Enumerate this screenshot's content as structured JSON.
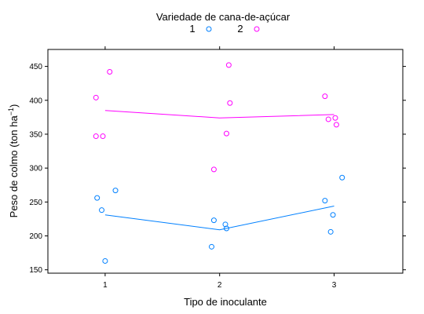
{
  "chart_data": {
    "type": "scatter",
    "legend": {
      "title": "Variedade de cana-de-açúcar",
      "placement": "top",
      "entries": [
        {
          "label": "1",
          "color": "#0080ff"
        },
        {
          "label": "2",
          "color": "#ff00ff"
        }
      ]
    },
    "xlabel": "Tipo de inoculante",
    "ylabel": {
      "main": "Peso de colmo (ton ha",
      "sup": "−1",
      "close": ")"
    },
    "xlim": [
      0.5,
      3.6
    ],
    "ylim": [
      145,
      475
    ],
    "x_ticks": [
      1,
      2,
      3
    ],
    "y_ticks": [
      150,
      200,
      250,
      300,
      350,
      400,
      450
    ],
    "grid": false,
    "series": [
      {
        "name": "1",
        "color": "#0080ff",
        "points": [
          {
            "x": 0.93,
            "y": 256
          },
          {
            "x": 0.97,
            "y": 238
          },
          {
            "x": 1.0,
            "y": 163
          },
          {
            "x": 1.09,
            "y": 267
          },
          {
            "x": 1.93,
            "y": 184
          },
          {
            "x": 1.95,
            "y": 223
          },
          {
            "x": 2.05,
            "y": 217
          },
          {
            "x": 2.06,
            "y": 211
          },
          {
            "x": 2.92,
            "y": 252
          },
          {
            "x": 2.97,
            "y": 206
          },
          {
            "x": 2.99,
            "y": 231
          },
          {
            "x": 3.07,
            "y": 286
          }
        ],
        "mean_line": [
          {
            "x": 1,
            "y": 231
          },
          {
            "x": 2,
            "y": 209
          },
          {
            "x": 3,
            "y": 244
          }
        ]
      },
      {
        "name": "2",
        "color": "#ff00ff",
        "points": [
          {
            "x": 0.92,
            "y": 404
          },
          {
            "x": 0.92,
            "y": 347
          },
          {
            "x": 0.98,
            "y": 347
          },
          {
            "x": 1.04,
            "y": 442
          },
          {
            "x": 1.95,
            "y": 298
          },
          {
            "x": 2.06,
            "y": 351
          },
          {
            "x": 2.08,
            "y": 452
          },
          {
            "x": 2.09,
            "y": 396
          },
          {
            "x": 2.92,
            "y": 406
          },
          {
            "x": 2.95,
            "y": 372
          },
          {
            "x": 3.01,
            "y": 374
          },
          {
            "x": 3.02,
            "y": 364
          }
        ],
        "mean_line": [
          {
            "x": 1,
            "y": 385
          },
          {
            "x": 2,
            "y": 374
          },
          {
            "x": 3,
            "y": 379
          }
        ]
      }
    ]
  }
}
